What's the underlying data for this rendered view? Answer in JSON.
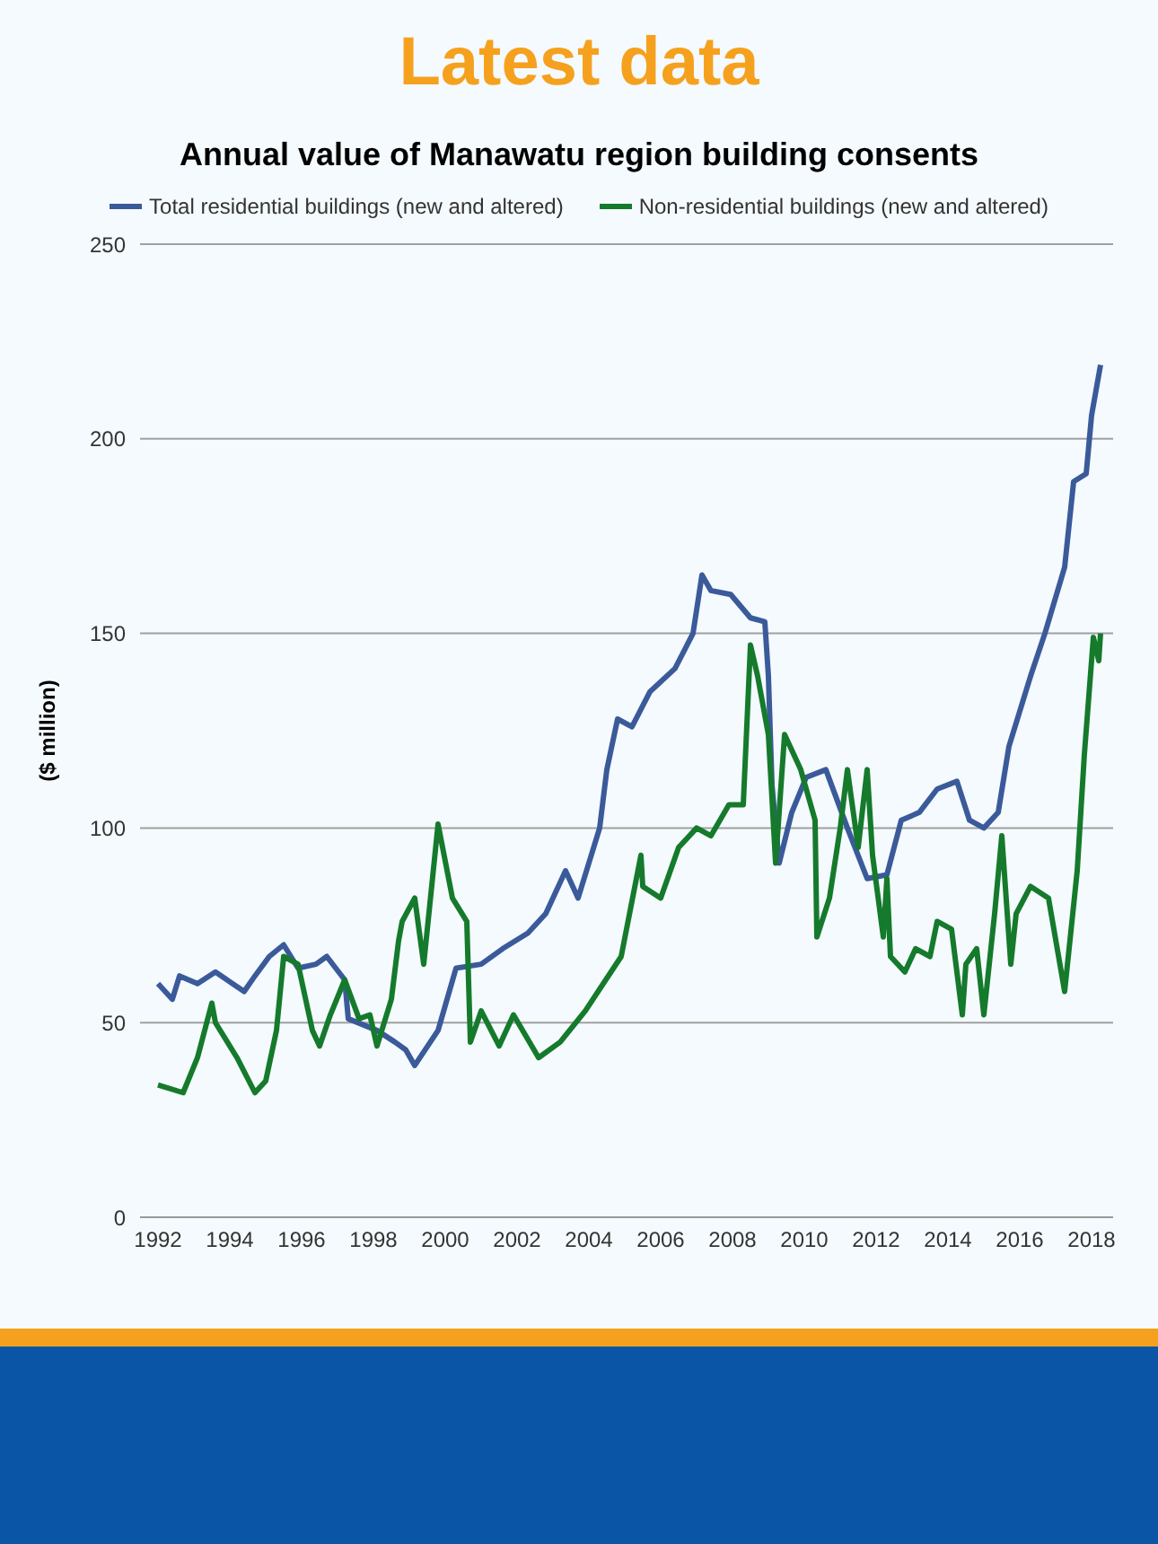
{
  "chart_data": {
    "type": "line",
    "title": "Latest data",
    "subtitle": "Annual value of Manawatu region building consents",
    "ylabel": "($ million)",
    "xlim": [
      1991.5,
      2018.6
    ],
    "xticks": [
      1992,
      1994,
      1996,
      1998,
      2000,
      2002,
      2004,
      2006,
      2008,
      2010,
      2012,
      2014,
      2016,
      2018
    ],
    "ylim": [
      0,
      250
    ],
    "yticks": [
      0,
      50,
      100,
      150,
      200,
      250
    ],
    "grid": "y",
    "legend": "top",
    "marker": "none",
    "line_style": "solid",
    "series": [
      {
        "name": "Total residential buildings (new and altered)",
        "color": "#3b5a9a",
        "x": [
          1992.0,
          1992.4,
          1992.6,
          1993.1,
          1993.6,
          1994.4,
          1994.7,
          1995.1,
          1995.5,
          1995.9,
          1996.4,
          1996.7,
          1997.2,
          1997.3,
          1998.1,
          1998.6,
          1998.9,
          1999.15,
          1999.8,
          2000.3,
          2001.0,
          2001.6,
          2002.3,
          2002.8,
          2003.35,
          2003.7,
          2004.3,
          2004.5,
          2004.8,
          2005.2,
          2005.7,
          2006.4,
          2006.9,
          2007.15,
          2007.4,
          2007.95,
          2008.5,
          2008.9,
          2009.0,
          2009.1,
          2009.3,
          2009.65,
          2010.05,
          2010.6,
          2011.2,
          2011.75,
          2012.3,
          2012.7,
          2013.2,
          2013.7,
          2014.25,
          2014.6,
          2015.0,
          2015.4,
          2015.7,
          2016.3,
          2016.7,
          2017.25,
          2017.5,
          2017.85,
          2018.0,
          2018.25
        ],
        "values": [
          60,
          56,
          62,
          60,
          63,
          58,
          62,
          67,
          70,
          64,
          65,
          67,
          61,
          51,
          48,
          45,
          43,
          39,
          48,
          64,
          65,
          69,
          73,
          78,
          89,
          82,
          100,
          115,
          128,
          126,
          135,
          141,
          150,
          165,
          161,
          160,
          154,
          153,
          139,
          111,
          91,
          104,
          113,
          115,
          100,
          87,
          88,
          102,
          104,
          110,
          112,
          102,
          100,
          104,
          121,
          139,
          150,
          167,
          189,
          191,
          206,
          219
        ]
      },
      {
        "name": "Non-residential buildings (new and altered)",
        "color": "#157a2c",
        "x": [
          1992.0,
          1992.7,
          1993.1,
          1993.5,
          1993.6,
          1994.2,
          1994.7,
          1995.0,
          1995.3,
          1995.5,
          1995.9,
          1996.3,
          1996.5,
          1996.8,
          1997.2,
          1997.6,
          1997.9,
          1998.1,
          1998.5,
          1998.7,
          1998.8,
          1999.15,
          1999.4,
          1999.8,
          2000.2,
          2000.6,
          2000.7,
          2001.0,
          2001.5,
          2001.9,
          2002.6,
          2003.2,
          2003.9,
          2004.9,
          2005.45,
          2005.5,
          2006.0,
          2006.5,
          2007.0,
          2007.4,
          2007.9,
          2008.3,
          2008.5,
          2008.7,
          2009.0,
          2009.2,
          2009.45,
          2009.9,
          2010.3,
          2010.35,
          2010.7,
          2011.0,
          2011.2,
          2011.5,
          2011.75,
          2011.9,
          2012.2,
          2012.3,
          2012.4,
          2012.8,
          2013.1,
          2013.5,
          2013.7,
          2014.1,
          2014.4,
          2014.5,
          2014.8,
          2015.0,
          2015.3,
          2015.5,
          2015.75,
          2015.9,
          2016.3,
          2016.8,
          2017.25,
          2017.6,
          2017.8,
          2018.05,
          2018.2,
          2018.25
        ],
        "values": [
          34,
          32,
          41,
          55,
          50,
          41,
          32,
          35,
          48,
          67,
          65,
          48,
          44,
          52,
          61,
          51,
          52,
          44,
          56,
          71,
          76,
          82,
          65,
          101,
          82,
          76,
          45,
          53,
          44,
          52,
          41,
          45,
          53,
          67,
          93,
          85,
          82,
          95,
          100,
          98,
          106,
          106,
          147,
          139,
          124,
          91,
          124,
          115,
          102,
          72,
          82,
          100,
          115,
          95,
          115,
          93,
          72,
          87,
          67,
          63,
          69,
          67,
          76,
          74,
          52,
          65,
          69,
          52,
          78,
          98,
          65,
          78,
          85,
          82,
          58,
          89,
          119,
          149,
          143,
          150
        ]
      }
    ]
  }
}
